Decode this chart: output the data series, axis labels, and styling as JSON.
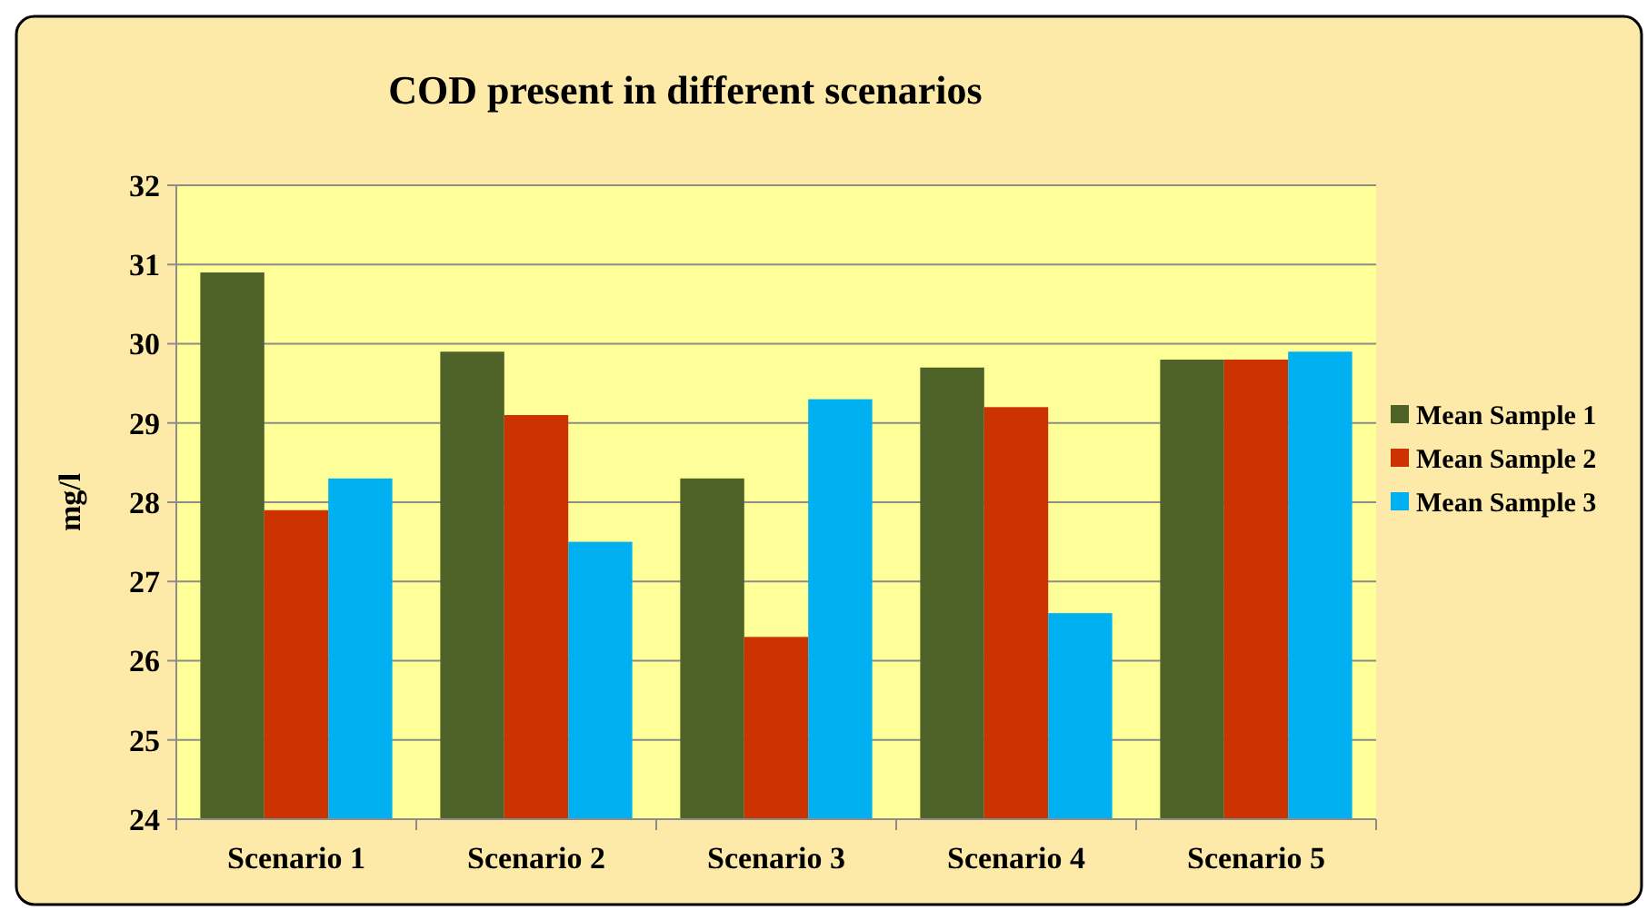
{
  "chart_data": {
    "type": "bar",
    "title": "COD present in different scenarios",
    "ylabel": "mg/l",
    "categories": [
      "Scenario 1",
      "Scenario 2",
      "Scenario 3",
      "Scenario 4",
      "Scenario 5"
    ],
    "series": [
      {
        "name": "Mean Sample 1",
        "color": "#4f6228",
        "values": [
          30.9,
          29.9,
          28.3,
          29.7,
          29.8
        ]
      },
      {
        "name": "Mean Sample 2",
        "color": "#cc3300",
        "values": [
          27.9,
          29.1,
          26.3,
          29.2,
          29.8
        ]
      },
      {
        "name": "Mean Sample 3",
        "color": "#00b0f0",
        "values": [
          28.3,
          27.5,
          29.3,
          26.6,
          29.9
        ]
      }
    ],
    "ylim": [
      24,
      32
    ],
    "yticks": [
      24,
      25,
      26,
      27,
      28,
      29,
      30,
      31,
      32
    ],
    "grid": "y",
    "legend": "right"
  }
}
